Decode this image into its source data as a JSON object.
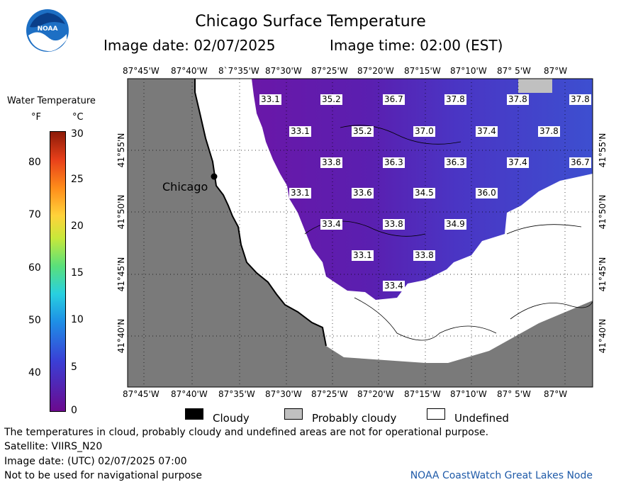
{
  "header": {
    "title": "Chicago Surface Temperature",
    "image_date": "Image date: 02/07/2025",
    "image_time": "Image time: 02:00 (EST)"
  },
  "logo": {
    "text": "NOAA"
  },
  "colorbar": {
    "title": "Water Temperature",
    "unit_f": "°F",
    "unit_c": "°C",
    "f_ticks": [
      "80",
      "70",
      "60",
      "50",
      "40"
    ],
    "c_ticks": [
      "30",
      "25",
      "20",
      "15",
      "10",
      "5",
      "0"
    ]
  },
  "map": {
    "top_lon_labels": [
      "87°45'W",
      "87°40'W",
      "8`7°35'W",
      "87°30'W",
      "87°25'W",
      "87°20'W",
      "87°15'W",
      "87°10'W",
      "87° 5'W",
      "87°W"
    ],
    "bottom_lon_labels": [
      "87°45'W",
      "87°40'W",
      "87°35'W",
      "87°30'W",
      "87°25'W",
      "87°20'W",
      "87°15'W",
      "87°10'W",
      "87° 5'W",
      "87°W"
    ],
    "lat_labels": [
      "41°55'N",
      "41°50'N",
      "41°45'N",
      "41°40'N"
    ],
    "city": "Chicago",
    "temps": [
      "33.1",
      "35.2",
      "36.7",
      "37.8",
      "37.8",
      "37.8",
      "33.1",
      "35.2",
      "37.0",
      "37.4",
      "37.8",
      "33.8",
      "36.3",
      "36.3",
      "37.4",
      "36.7",
      "33.1",
      "33.6",
      "34.5",
      "36.0",
      "33.4",
      "33.8",
      "34.9",
      "33.1",
      "33.8",
      "33.4"
    ]
  },
  "legend": {
    "cloudy": "Cloudy",
    "probably_cloudy": "Probably cloudy",
    "undefined": "Undefined"
  },
  "footer": {
    "note": "The temperatures in cloud, probably cloudy and undefined areas are not for operational purpose.",
    "satellite": "Satellite: VIIRS_N20",
    "utc_date": "Image date: (UTC) 02/07/2025  07:00",
    "nav": "Not to be used for navigational purpose",
    "credit": "NOAA CoastWatch Great Lakes Node"
  },
  "colors": {
    "land": "#7a7a7a",
    "probably_cloudy": "#c0c0c0",
    "cold_water": "#6a17a8",
    "warm_water": "#3d4fd0"
  }
}
